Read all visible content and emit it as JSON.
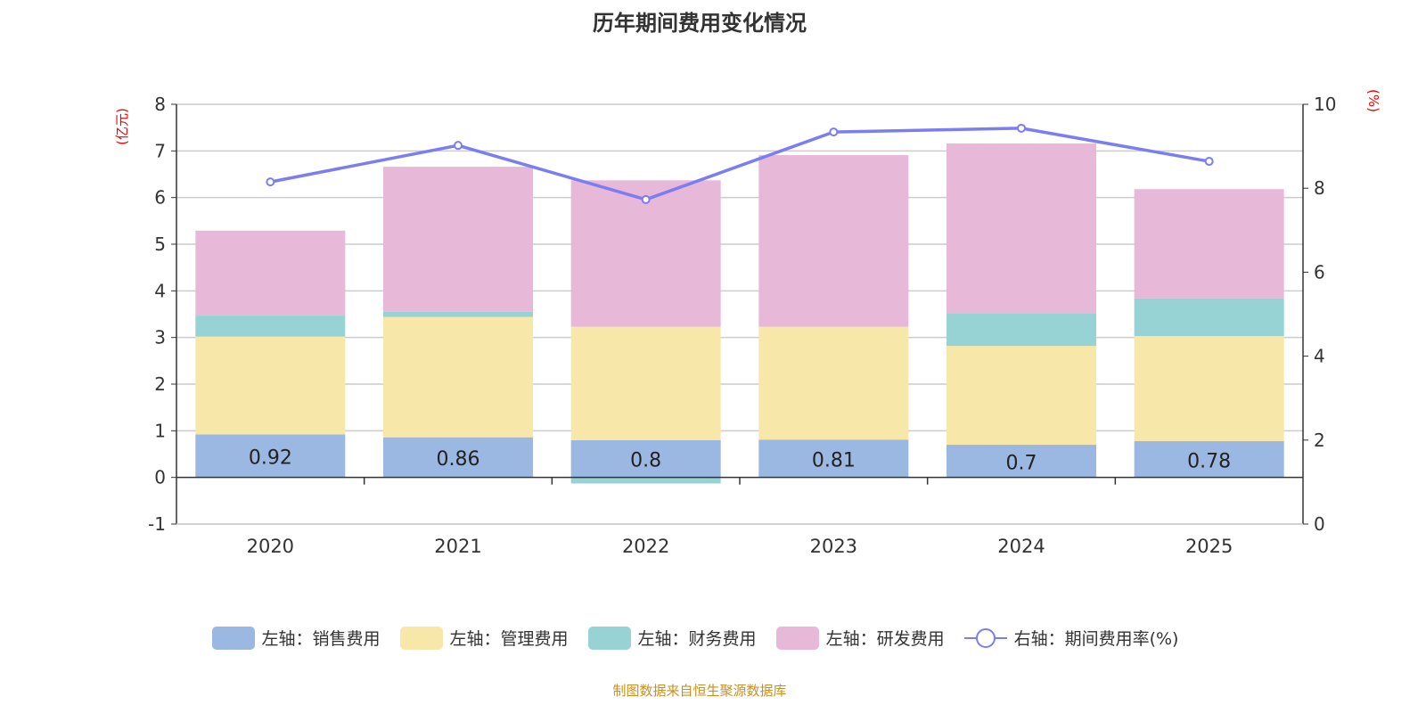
{
  "chart_data": {
    "type": "bar",
    "title": "历年期间费用变化情况",
    "categories": [
      "2020",
      "2021",
      "2022",
      "2023",
      "2024",
      "2025"
    ],
    "ylabel_left": "(亿元)",
    "ylabel_right": "(%)",
    "ylim_left": [
      -1,
      8
    ],
    "yticks_left": [
      -1,
      0,
      1,
      2,
      3,
      4,
      5,
      6,
      7,
      8
    ],
    "ylim_right": [
      0,
      10
    ],
    "yticks_right": [
      0,
      2,
      4,
      6,
      8,
      10
    ],
    "grid": true,
    "legend_position": "bottom",
    "series": [
      {
        "name": "左轴：销售费用",
        "type": "bar",
        "stack": true,
        "color": "#9bb8e2",
        "values": [
          0.92,
          0.86,
          0.8,
          0.81,
          0.7,
          0.78
        ],
        "labels": [
          "0.92",
          "0.86",
          "0.8",
          "0.81",
          "0.7",
          "0.78"
        ]
      },
      {
        "name": "左轴：管理费用",
        "type": "bar",
        "stack": true,
        "color": "#f7e7a9",
        "values": [
          2.1,
          2.58,
          2.43,
          2.42,
          2.12,
          2.25
        ]
      },
      {
        "name": "左轴：财务费用",
        "type": "bar",
        "stack": true,
        "color": "#97d3d4",
        "values": [
          0.45,
          0.11,
          -0.13,
          0.0,
          0.69,
          0.81
        ]
      },
      {
        "name": "左轴：研发费用",
        "type": "bar",
        "stack": true,
        "color": "#e7b8d8",
        "values": [
          1.82,
          3.11,
          3.14,
          3.68,
          3.65,
          2.34
        ]
      },
      {
        "name": "右轴：期间费用率(%)",
        "type": "line",
        "axis": "right",
        "color": "#7b7ef2",
        "values": [
          8.15,
          9.02,
          7.73,
          9.34,
          9.43,
          8.64
        ]
      }
    ]
  },
  "source": "制图数据来自恒生聚源数据库"
}
